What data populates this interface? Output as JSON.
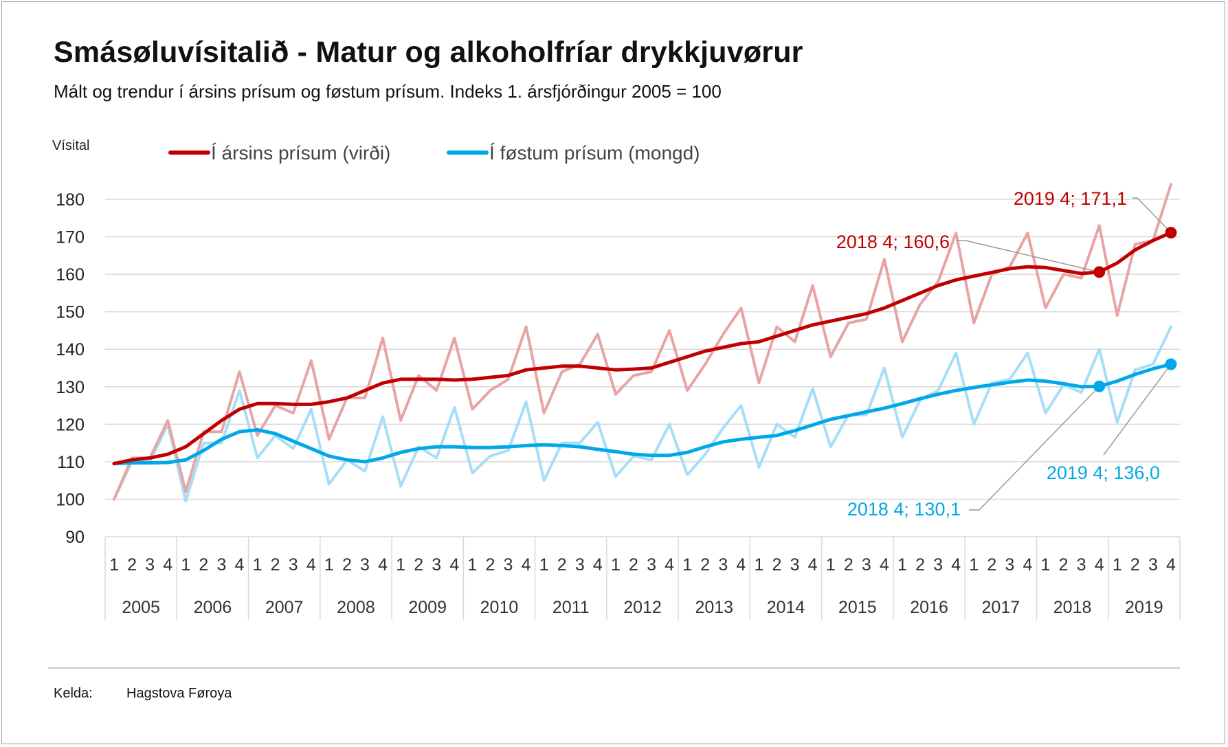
{
  "title": "Smásøluvísitalið - Matur og alkoholfríar drykkjuvørur",
  "subtitle": "Mált og trendur í ársins prísum og føstum prísum. Indeks 1. ársfjórðingur 2005 = 100",
  "source": {
    "label": "Kelda:",
    "value": "Hagstova Føroya"
  },
  "chart_data": {
    "type": "line",
    "ylabel": "Vísital",
    "ylim": [
      90,
      180
    ],
    "yticks": [
      "90",
      "100",
      "110",
      "120",
      "130",
      "140",
      "150",
      "160",
      "170",
      "180"
    ],
    "grid": true,
    "legend_position": "top",
    "quarter_labels": [
      "1",
      "2",
      "3",
      "4"
    ],
    "years": [
      "2005",
      "2006",
      "2007",
      "2008",
      "2009",
      "2010",
      "2011",
      "2012",
      "2013",
      "2014",
      "2015",
      "2016",
      "2017",
      "2018",
      "2019"
    ],
    "series": [
      {
        "name": "Í ársins prísum (virði)",
        "kind": "raw",
        "color": "#e8a4a4",
        "values": [
          100,
          111,
          111,
          121,
          102,
          118,
          118,
          134,
          117,
          125,
          123,
          137,
          116,
          127,
          127,
          143,
          121,
          133,
          129,
          143,
          124,
          129,
          132,
          146,
          123,
          134,
          136,
          144,
          128,
          133,
          134,
          145,
          129,
          136,
          144,
          151,
          131,
          146,
          142,
          157,
          138,
          147,
          148,
          164,
          142,
          152,
          158,
          171,
          147,
          160,
          162,
          171,
          151,
          160,
          159,
          173,
          149,
          168,
          169,
          184
        ]
      },
      {
        "name": "Í ársins prísum (virði)",
        "kind": "trend",
        "color": "#c00000",
        "values": [
          109.5,
          110.5,
          111,
          112,
          114,
          117.5,
          121,
          124,
          125.5,
          125.5,
          125.3,
          125.3,
          126,
          127,
          129,
          131,
          132,
          132,
          132,
          131.8,
          132,
          132.5,
          133,
          134.5,
          135,
          135.5,
          135.5,
          135,
          134.5,
          134.7,
          135,
          136.5,
          138,
          139.5,
          140.5,
          141.5,
          142,
          143.5,
          145,
          146.5,
          147.5,
          148.5,
          149.5,
          151,
          153,
          155,
          157,
          158.5,
          159.5,
          160.5,
          161.5,
          162,
          161.8,
          161,
          160.2,
          160.6,
          163,
          166.5,
          169,
          171.1
        ]
      },
      {
        "name": "Í føstum prísum (mongd)",
        "kind": "raw",
        "color": "#a7def7",
        "values": [
          100,
          110,
          110,
          120,
          99.5,
          115,
          115,
          129,
          111,
          117,
          113.5,
          124,
          104,
          110.5,
          107.5,
          122,
          103.5,
          114,
          111,
          124.5,
          107,
          111.5,
          113,
          126,
          105,
          115,
          115,
          120.5,
          106,
          111.5,
          110.5,
          120,
          106.5,
          112,
          119,
          125,
          108.5,
          120,
          116.5,
          129.5,
          114,
          122.5,
          122.5,
          135,
          116.5,
          126.5,
          129,
          139,
          120,
          131,
          132,
          139,
          123,
          130.5,
          128.5,
          140,
          120.5,
          134.5,
          136,
          146
        ]
      },
      {
        "name": "Í føstum prísum (mongd)",
        "kind": "trend",
        "color": "#00a8e8",
        "values": [
          109.5,
          109.7,
          109.7,
          109.8,
          110.5,
          113,
          116,
          118,
          118.5,
          117.5,
          115.5,
          113.5,
          111.5,
          110.5,
          110,
          111,
          112.5,
          113.5,
          114,
          114,
          113.8,
          113.8,
          114,
          114.3,
          114.5,
          114.3,
          114,
          113.3,
          112.7,
          112,
          111.7,
          111.7,
          112.5,
          114,
          115.3,
          116,
          116.5,
          117,
          118.3,
          119.8,
          121.3,
          122.3,
          123.3,
          124.3,
          125.5,
          126.8,
          128,
          129,
          129.8,
          130.5,
          131.2,
          131.8,
          131.5,
          130.8,
          130,
          130.1,
          131.5,
          133.3,
          134.8,
          136
        ]
      }
    ],
    "callouts": [
      {
        "label": "2019 4; 171,1",
        "series": "trend-red",
        "quarter_index": 59,
        "value": 171.1,
        "color": "#c00000"
      },
      {
        "label": "2018 4; 160,6",
        "series": "trend-red",
        "quarter_index": 55,
        "value": 160.6,
        "color": "#c00000"
      },
      {
        "label": "2019 4; 136,0",
        "series": "trend-blue",
        "quarter_index": 59,
        "value": 136.0,
        "color": "#00a8e8"
      },
      {
        "label": "2018 4; 130,1",
        "series": "trend-blue",
        "quarter_index": 55,
        "value": 130.1,
        "color": "#00a8e8"
      }
    ]
  }
}
